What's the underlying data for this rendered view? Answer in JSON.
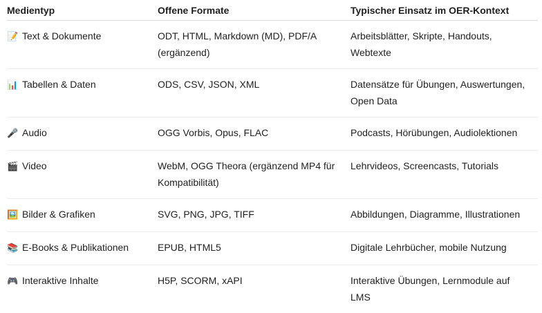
{
  "headers": [
    "Medientyp",
    "Offene Formate",
    "Typischer Einsatz im OER-Kontext"
  ],
  "rows": [
    {
      "icon": "📝",
      "icon_name": "memo-icon",
      "type": "Text & Dokumente",
      "formats": "ODT, HTML, Markdown (MD), PDF/A (ergänzend)",
      "use": "Arbeitsblätter, Skripte, Handouts, Webtexte"
    },
    {
      "icon": "📊",
      "icon_name": "bar-chart-icon",
      "type": "Tabellen & Daten",
      "formats": "ODS, CSV, JSON, XML",
      "use": "Datensätze für Übungen, Auswertungen, Open Data"
    },
    {
      "icon": "🎤",
      "icon_name": "microphone-icon",
      "type": "Audio",
      "formats": "OGG Vorbis, Opus, FLAC",
      "use": "Podcasts, Hörübungen, Audiolektionen"
    },
    {
      "icon": "🎬",
      "icon_name": "clapper-board-icon",
      "type": "Video",
      "formats": "WebM, OGG Theora (ergänzend MP4 für Kompatibilität)",
      "use": "Lehrvideos, Screencasts, Tutorials"
    },
    {
      "icon": "🖼️",
      "icon_name": "framed-picture-icon",
      "type": "Bilder & Grafiken",
      "formats": "SVG, PNG, JPG, TIFF",
      "use": "Abbildungen, Diagramme, Illustrationen"
    },
    {
      "icon": "📚",
      "icon_name": "books-icon",
      "type": "E-Books & Publikationen",
      "formats": "EPUB, HTML5",
      "use": "Digitale Lehrbücher, mobile Nutzung"
    },
    {
      "icon": "🎮",
      "icon_name": "game-controller-icon",
      "type": "Interaktive Inhalte",
      "formats": "H5P, SCORM, xAPI",
      "use": "Interaktive Übungen, Lernmodule auf LMS"
    }
  ]
}
